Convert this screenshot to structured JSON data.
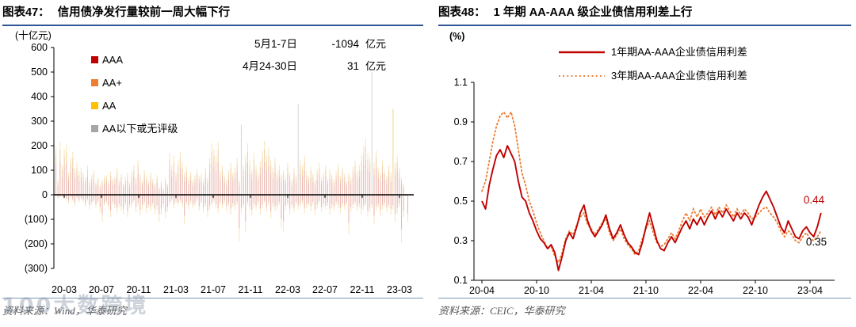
{
  "watermark": {
    "text": "100大数跨境"
  },
  "chart_data": [
    {
      "type": "bar",
      "figure_label": "图表47：",
      "title": "信用债净发行量较前一周大幅下行",
      "unit": "(十亿元)",
      "source": "资料来源：Wind，华泰研究",
      "legend": [
        {
          "label": "AAA",
          "color": "#C00000"
        },
        {
          "label": "AA+",
          "color": "#ED7D31"
        },
        {
          "label": "AA",
          "color": "#FFC000"
        },
        {
          "label": "AA以下或无评级",
          "color": "#A6A6A6"
        }
      ],
      "annotations": [
        {
          "label": "5月1-7日",
          "value": "-1094",
          "unit": "亿元"
        },
        {
          "label": "4月24-30日",
          "value": "31",
          "unit": "亿元"
        }
      ],
      "ylim": [
        -300,
        600
      ],
      "y_ticks": [
        600,
        500,
        400,
        300,
        200,
        100,
        0,
        -100,
        -200,
        -300
      ],
      "x_ticks": [
        "20-03",
        "20-07",
        "20-11",
        "21-03",
        "21-07",
        "21-11",
        "22-03",
        "22-07",
        "22-11",
        "23-03"
      ],
      "bar_colors": {
        "aaa": "#EAB5AD",
        "aap": "#F2CFA6",
        "aa": "#F7E7BE",
        "gray": "#D8D8D8",
        "yellow": "#F3D896"
      },
      "pos": [
        195,
        60,
        215,
        120,
        185,
        205,
        90,
        150,
        175,
        110,
        130,
        95,
        110,
        90,
        70,
        120,
        60,
        80,
        100,
        50,
        70,
        40,
        60,
        75,
        80,
        55,
        95,
        65,
        75,
        110,
        60,
        85,
        45,
        70,
        90,
        50,
        95,
        120,
        70,
        140,
        85,
        60,
        100,
        75,
        55,
        90,
        65,
        45,
        80,
        30,
        55,
        25,
        70,
        45,
        170,
        120,
        160,
        90,
        140,
        175,
        130,
        90,
        115,
        70,
        95,
        60,
        80,
        105,
        75,
        85,
        60,
        110,
        70,
        150,
        210,
        185,
        160,
        215,
        95,
        120,
        80,
        60,
        100,
        130,
        90,
        110,
        150,
        60,
        285,
        120,
        160,
        210,
        140,
        100,
        170,
        120,
        90,
        135,
        180,
        220,
        160,
        190,
        140,
        110,
        150,
        95,
        120,
        85,
        100,
        70,
        130,
        90,
        60,
        110,
        80,
        370,
        140,
        120,
        160,
        95,
        75,
        115,
        85,
        60,
        100,
        130,
        70,
        90,
        120,
        65,
        105,
        80,
        60,
        95,
        125,
        75,
        110,
        85,
        55,
        90,
        70,
        115,
        140,
        95,
        120,
        160,
        200,
        230,
        170,
        150,
        500,
        130,
        180,
        110,
        90,
        140,
        100,
        75,
        120,
        90,
        350,
        130,
        160,
        110,
        70,
        45,
        3,
        0
      ],
      "neg": [
        -5,
        -15,
        -10,
        -8,
        -12,
        -20,
        -35,
        -10,
        -25,
        -45,
        -15,
        -30,
        -20,
        -30,
        -50,
        -25,
        -60,
        -40,
        -30,
        -55,
        -35,
        -70,
        -110,
        -45,
        -35,
        -60,
        -90,
        -40,
        -55,
        -75,
        -50,
        -65,
        -80,
        -45,
        -90,
        -55,
        -50,
        -30,
        -70,
        -45,
        -85,
        -60,
        -40,
        -75,
        -55,
        -65,
        -45,
        -80,
        -60,
        -110,
        -80,
        -50,
        -95,
        -70,
        -40,
        -25,
        -55,
        -35,
        -45,
        -30,
        -50,
        -120,
        -40,
        -60,
        -35,
        -55,
        -45,
        -25,
        -65,
        -40,
        -70,
        -50,
        -90,
        -60,
        -45,
        -30,
        -55,
        -75,
        -40,
        -55,
        -35,
        -65,
        -45,
        -80,
        -50,
        -60,
        -40,
        -190,
        -75,
        -55,
        -150,
        -40,
        -65,
        -85,
        -50,
        -60,
        -40,
        -80,
        -55,
        -35,
        -70,
        -45,
        -95,
        -50,
        -65,
        -60,
        -40,
        -135,
        -150,
        -60,
        -45,
        -80,
        -55,
        -70,
        -40,
        -60,
        -50,
        -35,
        -75,
        -55,
        -45,
        -65,
        -40,
        -85,
        -55,
        -35,
        -70,
        -50,
        -60,
        -45,
        -80,
        -55,
        -65,
        -40,
        -55,
        -75,
        -50,
        -60,
        -45,
        -160,
        -70,
        -55,
        -40,
        -65,
        -50,
        -80,
        -60,
        -45,
        -90,
        -70,
        -55,
        -120,
        -65,
        -50,
        -85,
        -60,
        -45,
        -70,
        -55,
        -80,
        -60,
        -110,
        -75,
        -50,
        -195,
        -90,
        -5,
        -109
      ],
      "gray_bars": [
        88,
        115,
        150
      ],
      "yellow_bars": [
        160
      ]
    },
    {
      "type": "line",
      "figure_label": "图表48：",
      "title": "1 年期 AA-AAA 级企业债信用利差上行",
      "unit": "(%)",
      "source": "资料来源：CEIC，华泰研究",
      "legend": [
        {
          "label": "1年期AA-AAA企业债信用利差",
          "color": "#C00000",
          "style": "solid"
        },
        {
          "label": "3年期AA-AAA企业债信用利差",
          "color": "#ED7D31",
          "style": "dotted"
        }
      ],
      "ylim": [
        0.1,
        1.1
      ],
      "y_ticks": [
        1.1,
        0.9,
        0.7,
        0.5,
        0.3,
        0.1
      ],
      "x_ticks": [
        "20-04",
        "20-10",
        "21-04",
        "21-10",
        "22-04",
        "22-10",
        "23-04"
      ],
      "x_step_months": 0.4,
      "end_labels": [
        {
          "text": "0.44",
          "color": "#C00000"
        },
        {
          "text": "0.35",
          "color": "#000000"
        }
      ],
      "series": [
        {
          "name": "1年期AA-AAA企业债信用利差",
          "values": [
            0.5,
            0.46,
            0.58,
            0.66,
            0.73,
            0.76,
            0.72,
            0.78,
            0.74,
            0.7,
            0.6,
            0.52,
            0.5,
            0.44,
            0.4,
            0.35,
            0.31,
            0.29,
            0.26,
            0.28,
            0.24,
            0.15,
            0.22,
            0.3,
            0.34,
            0.31,
            0.37,
            0.44,
            0.48,
            0.4,
            0.35,
            0.32,
            0.35,
            0.38,
            0.43,
            0.36,
            0.31,
            0.34,
            0.38,
            0.33,
            0.29,
            0.27,
            0.24,
            0.23,
            0.29,
            0.37,
            0.44,
            0.37,
            0.3,
            0.26,
            0.25,
            0.29,
            0.32,
            0.29,
            0.33,
            0.37,
            0.4,
            0.36,
            0.41,
            0.38,
            0.42,
            0.38,
            0.42,
            0.45,
            0.41,
            0.45,
            0.42,
            0.46,
            0.43,
            0.4,
            0.44,
            0.41,
            0.44,
            0.42,
            0.38,
            0.43,
            0.48,
            0.52,
            0.55,
            0.51,
            0.47,
            0.42,
            0.37,
            0.34,
            0.4,
            0.36,
            0.32,
            0.31,
            0.35,
            0.37,
            0.34,
            0.32,
            0.37,
            0.44
          ]
        },
        {
          "name": "3年期AA-AAA企业债信用利差",
          "values": [
            0.55,
            0.6,
            0.7,
            0.8,
            0.88,
            0.93,
            0.95,
            0.92,
            0.95,
            0.88,
            0.76,
            0.64,
            0.58,
            0.5,
            0.45,
            0.39,
            0.34,
            0.3,
            0.26,
            0.27,
            0.22,
            0.19,
            0.24,
            0.31,
            0.35,
            0.33,
            0.38,
            0.42,
            0.44,
            0.38,
            0.36,
            0.33,
            0.36,
            0.39,
            0.41,
            0.34,
            0.3,
            0.33,
            0.36,
            0.31,
            0.28,
            0.26,
            0.23,
            0.25,
            0.31,
            0.36,
            0.4,
            0.34,
            0.29,
            0.27,
            0.28,
            0.31,
            0.34,
            0.31,
            0.35,
            0.4,
            0.44,
            0.4,
            0.46,
            0.42,
            0.46,
            0.42,
            0.44,
            0.47,
            0.43,
            0.47,
            0.44,
            0.48,
            0.45,
            0.42,
            0.46,
            0.43,
            0.46,
            0.44,
            0.41,
            0.42,
            0.44,
            0.46,
            0.47,
            0.44,
            0.42,
            0.39,
            0.35,
            0.32,
            0.35,
            0.33,
            0.3,
            0.29,
            0.32,
            0.34,
            0.31,
            0.3,
            0.32,
            0.35
          ]
        }
      ]
    }
  ]
}
